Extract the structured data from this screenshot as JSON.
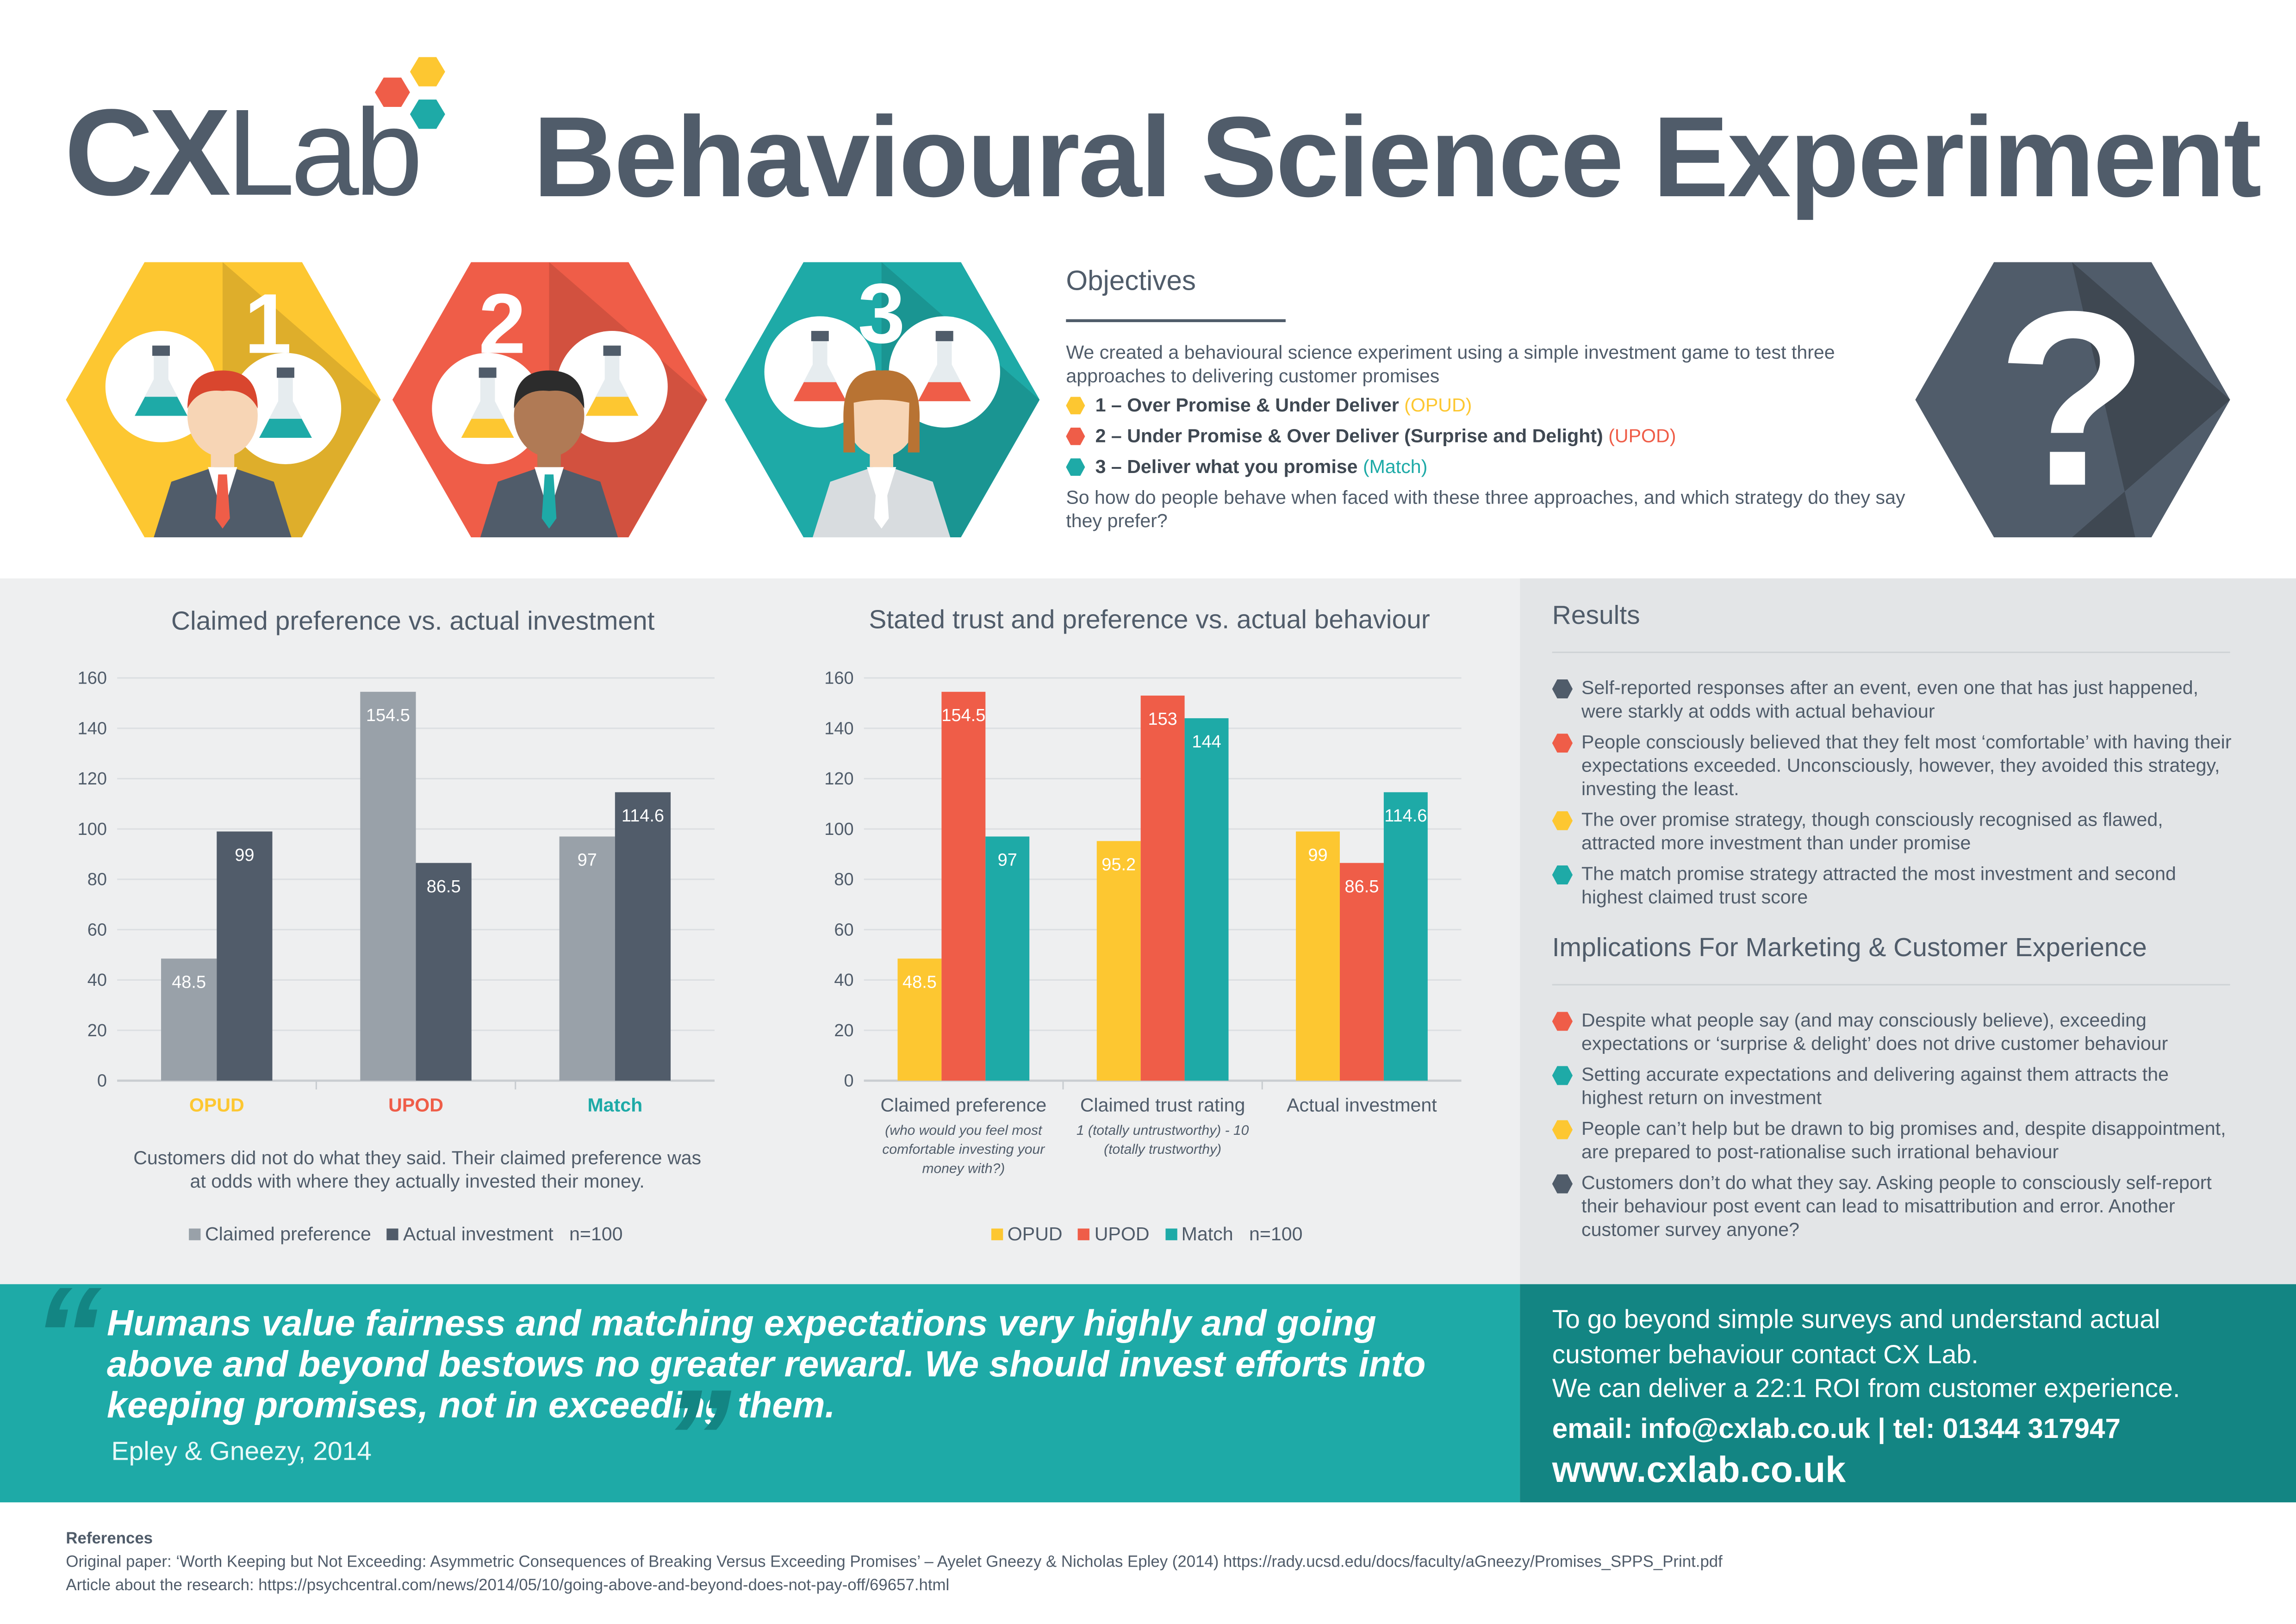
{
  "header": {
    "logo_bold": "CX",
    "logo_light": "Lab",
    "title": "Behavioural Science Experiment"
  },
  "strategies": [
    {
      "number": "1",
      "color": "#fdc731"
    },
    {
      "number": "2",
      "color": "#ef5d48"
    },
    {
      "number": "3",
      "color": "#1eaaa7"
    }
  ],
  "objectives": {
    "heading": "Objectives",
    "intro": "We created a behavioural science experiment using a simple investment game to test three approaches to delivering customer promises",
    "items": [
      {
        "text": "1 – Over Promise & Under Deliver ",
        "tag": "(OPUD)",
        "color": "#fdc731"
      },
      {
        "text": "2 – Under Promise & Over Deliver (Surprise and Delight) ",
        "tag": "(UPOD)",
        "color": "#ef5d48"
      },
      {
        "text": "3 – Deliver what you promise ",
        "tag": "(Match)",
        "color": "#1eaaa7"
      }
    ],
    "question": "So how do people behave when faced with these three approaches, and which strategy do they say they prefer?",
    "question_mark": "?"
  },
  "chart_data": [
    {
      "type": "bar",
      "title": "Claimed preference vs. actual investment",
      "categories": [
        "OPUD",
        "UPOD",
        "Match"
      ],
      "category_colors": [
        "#fdc731",
        "#ef5d48",
        "#1eaaa7"
      ],
      "series": [
        {
          "name": "Claimed preference",
          "color": "#99a1a9",
          "values": [
            48.5,
            154.5,
            97
          ]
        },
        {
          "name": "Actual investment",
          "color": "#515c6a",
          "values": [
            99,
            86.5,
            114.6
          ]
        }
      ],
      "ylim": [
        0,
        160
      ],
      "yticks": [
        0,
        20,
        40,
        60,
        80,
        100,
        120,
        140,
        160
      ],
      "grid": true,
      "caption": "Customers did not do what they said. Their claimed preference was at odds with where they actually invested their money.",
      "n_label": "n=100",
      "legend": "bottom"
    },
    {
      "type": "bar",
      "title": "Stated trust and preference vs. actual behaviour",
      "categories": [
        "Claimed preference",
        "Claimed trust rating",
        "Actual investment"
      ],
      "category_subtitles": [
        "(who would you feel most comfortable investing your money with?)",
        "1 (totally untrustworthy) - 10 (totally trustworthy)",
        ""
      ],
      "series": [
        {
          "name": "OPUD",
          "color": "#fdc731",
          "values": [
            48.5,
            95.2,
            99
          ]
        },
        {
          "name": "UPOD",
          "color": "#ef5d48",
          "values": [
            154.5,
            153,
            86.5
          ]
        },
        {
          "name": "Match",
          "color": "#1eaaa7",
          "values": [
            97,
            144,
            114.6
          ]
        }
      ],
      "ylim": [
        0,
        160
      ],
      "yticks": [
        0,
        20,
        40,
        60,
        80,
        100,
        120,
        140,
        160
      ],
      "grid": true,
      "n_label": "n=100",
      "legend": "bottom"
    }
  ],
  "results": {
    "heading": "Results",
    "items": [
      {
        "color": "#505c6a",
        "text": "Self-reported responses after an event, even one that has just happened, were starkly at odds with actual behaviour"
      },
      {
        "color": "#ef5d48",
        "text": "People consciously believed that they felt most ‘comfortable’ with having their expectations exceeded. Unconsciously, however, they avoided this strategy, investing the least."
      },
      {
        "color": "#fdc731",
        "text": "The over promise strategy, though consciously recognised as flawed, attracted more investment than under promise"
      },
      {
        "color": "#1eaaa7",
        "text": "The match promise strategy attracted the most investment and second highest claimed trust score"
      }
    ]
  },
  "implications": {
    "heading": "Implications For Marketing & Customer Experience",
    "items": [
      {
        "color": "#ef5d48",
        "text": "Despite what people say (and may consciously believe), exceeding expectations or ‘surprise & delight’ does not drive customer behaviour"
      },
      {
        "color": "#1eaaa7",
        "text": "Setting accurate expectations and delivering against them attracts the highest return on investment"
      },
      {
        "color": "#fdc731",
        "text": "People can’t help but be drawn to big promises and, despite disappointment, are prepared to post-rationalise such irrational behaviour"
      },
      {
        "color": "#505c6a",
        "text": "Customers don’t do what they say. Asking people to consciously self-report their behaviour post event can lead to misattribution and error. Another customer survey anyone?"
      }
    ]
  },
  "quote": {
    "text": "Humans value fairness and matching expectations very highly and going above and beyond bestows no greater reward. We should invest efforts into keeping promises, not in exceeding them.",
    "author": "Epley & Gneezy, 2014",
    "open": "“",
    "close": "”"
  },
  "contact": {
    "line1": "To go beyond simple surveys and understand actual customer behaviour contact CX Lab.",
    "line2": "We can deliver a 22:1 ROI from customer experience.",
    "email_line": "email: info@cxlab.co.uk | tel: 01344 317947",
    "website": "www.cxlab.co.uk"
  },
  "references": {
    "heading": "References",
    "items": [
      "Original paper: ‘Worth Keeping but Not Exceeding: Asymmetric Consequences of Breaking Versus Exceeding Promises’ – Ayelet Gneezy & Nicholas Epley (2014) https://rady.ucsd.edu/docs/faculty/aGneezy/Promises_SPPS_Print.pdf",
      "Article about the research: https://psychcentral.com/news/2014/05/10/going-above-and-beyond-does-not-pay-off/69657.html"
    ]
  }
}
